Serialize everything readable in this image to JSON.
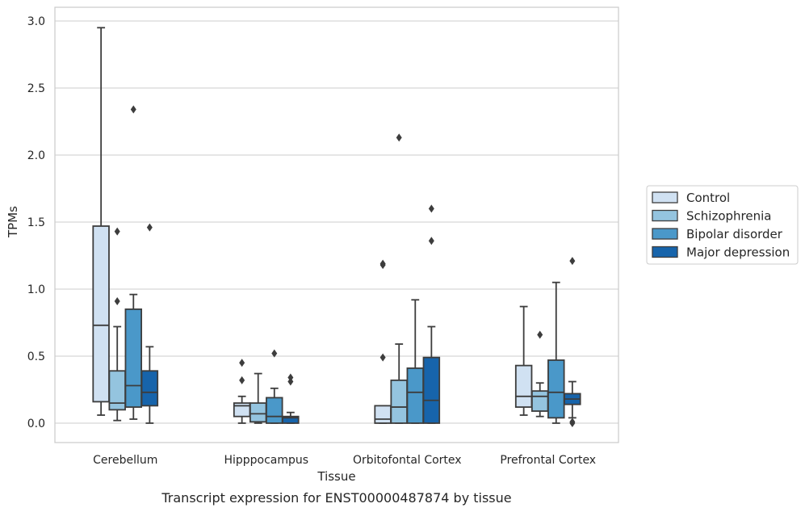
{
  "chart_data": {
    "type": "boxplot",
    "xlabel": "Tissue",
    "ylabel": "TPMs",
    "caption": "Transcript expression for ENST00000487874 by tissue",
    "ylim": [
      -0.14,
      3.1
    ],
    "yticks": [
      "0.0",
      "0.5",
      "1.0",
      "1.5",
      "2.0",
      "2.5",
      "3.0"
    ],
    "grid": true,
    "legend_position": "right",
    "categories": [
      "Cerebellum",
      "Hipppocampus",
      "Orbitofontal Cortex",
      "Prefrontal Cortex"
    ],
    "series": [
      {
        "name": "Control",
        "color": "#d0e1f2",
        "boxes": [
          {
            "whisker_low": 0.06,
            "q1": 0.16,
            "median": 0.73,
            "q3": 1.47,
            "whisker_high": 2.95,
            "outliers": []
          },
          {
            "whisker_low": 0.0,
            "q1": 0.05,
            "median": 0.13,
            "q3": 0.15,
            "whisker_high": 0.2,
            "outliers": [
              0.32,
              0.45
            ]
          },
          {
            "whisker_low": 0.0,
            "q1": 0.0,
            "median": 0.03,
            "q3": 0.13,
            "whisker_high": 0.13,
            "outliers": [
              0.49,
              1.18,
              1.19
            ]
          },
          {
            "whisker_low": 0.06,
            "q1": 0.12,
            "median": 0.2,
            "q3": 0.43,
            "whisker_high": 0.87,
            "outliers": []
          }
        ]
      },
      {
        "name": "Schizophrenia",
        "color": "#94c4df",
        "boxes": [
          {
            "whisker_low": 0.02,
            "q1": 0.1,
            "median": 0.15,
            "q3": 0.39,
            "whisker_high": 0.72,
            "outliers": [
              0.91,
              1.43
            ]
          },
          {
            "whisker_low": 0.0,
            "q1": 0.01,
            "median": 0.07,
            "q3": 0.15,
            "whisker_high": 0.37,
            "outliers": []
          },
          {
            "whisker_low": 0.0,
            "q1": 0.0,
            "median": 0.12,
            "q3": 0.32,
            "whisker_high": 0.59,
            "outliers": [
              2.13
            ]
          },
          {
            "whisker_low": 0.05,
            "q1": 0.09,
            "median": 0.2,
            "q3": 0.24,
            "whisker_high": 0.3,
            "outliers": [
              0.66
            ]
          }
        ]
      },
      {
        "name": "Bipolar disorder",
        "color": "#4a98c9",
        "boxes": [
          {
            "whisker_low": 0.03,
            "q1": 0.12,
            "median": 0.28,
            "q3": 0.85,
            "whisker_high": 0.96,
            "outliers": [
              2.34
            ]
          },
          {
            "whisker_low": 0.0,
            "q1": 0.0,
            "median": 0.05,
            "q3": 0.19,
            "whisker_high": 0.26,
            "outliers": [
              0.52
            ]
          },
          {
            "whisker_low": 0.0,
            "q1": 0.0,
            "median": 0.23,
            "q3": 0.41,
            "whisker_high": 0.92,
            "outliers": []
          },
          {
            "whisker_low": 0.0,
            "q1": 0.04,
            "median": 0.23,
            "q3": 0.47,
            "whisker_high": 1.05,
            "outliers": []
          }
        ]
      },
      {
        "name": "Major depression",
        "color": "#1764ab",
        "boxes": [
          {
            "whisker_low": 0.0,
            "q1": 0.13,
            "median": 0.23,
            "q3": 0.39,
            "whisker_high": 0.57,
            "outliers": [
              1.46
            ]
          },
          {
            "whisker_low": 0.0,
            "q1": 0.0,
            "median": 0.04,
            "q3": 0.05,
            "whisker_high": 0.08,
            "outliers": [
              0.31,
              0.34
            ]
          },
          {
            "whisker_low": 0.0,
            "q1": 0.0,
            "median": 0.17,
            "q3": 0.49,
            "whisker_high": 0.72,
            "outliers": [
              1.36,
              1.6
            ]
          },
          {
            "whisker_low": 0.04,
            "q1": 0.14,
            "median": 0.18,
            "q3": 0.22,
            "whisker_high": 0.31,
            "outliers": [
              0.0,
              0.01,
              1.21
            ]
          }
        ]
      }
    ]
  }
}
